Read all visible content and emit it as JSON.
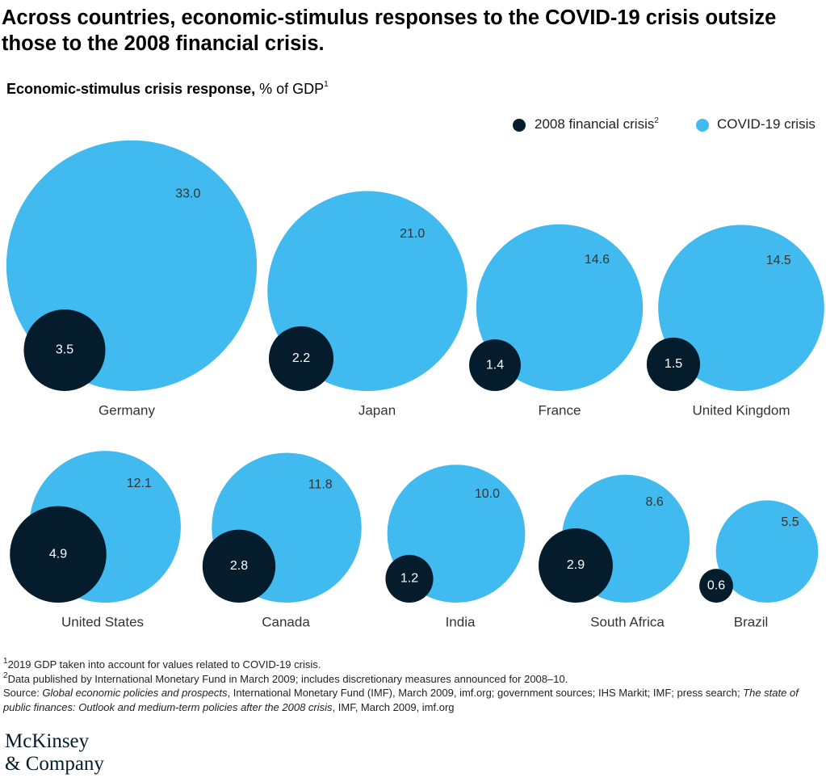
{
  "chart_data": {
    "type": "bubble",
    "title": "Across countries, economic-stimulus responses to the COVID-19 crisis outsize those to the 2008 financial crisis.",
    "subtitle": "Economic-stimulus crisis response,",
    "subtitle_unit": "% of GDP",
    "subtitle_note": "1",
    "categories": [
      "Germany",
      "Japan",
      "France",
      "United Kingdom",
      "United States",
      "Canada",
      "India",
      "South Africa",
      "Brazil"
    ],
    "series": [
      {
        "name": "2008 financial crisis",
        "name_note": "2",
        "color": "#051c2c",
        "values": [
          3.5,
          2.2,
          1.4,
          1.5,
          4.9,
          2.8,
          1.2,
          2.9,
          0.6
        ]
      },
      {
        "name": "COVID-19 crisis",
        "color": "#41bbef",
        "values": [
          33,
          21,
          14.6,
          14.5,
          12.1,
          11.8,
          10,
          8.6,
          5.5
        ],
        "value_labels": [
          "33.0",
          "21.0",
          "14.6",
          "14.5",
          "12.1",
          "11.8",
          "10.0",
          "8.6",
          "5.5"
        ]
      }
    ],
    "footnotes": [
      {
        "marker": "1",
        "text": "2019 GDP taken into account for values related to COVID-19 crisis."
      },
      {
        "marker": "2",
        "text": "Data published by International Monetary Fund in March 2009; includes discretionary measures announced for 2008–10."
      }
    ],
    "source": [
      {
        "text": "Source: ",
        "italic": false
      },
      {
        "text": "Global economic policies and prospects",
        "italic": true
      },
      {
        "text": ", International Monetary Fund (IMF), March 2009, imf.org; government sources; IHS Markit; IMF; press search; ",
        "italic": false
      },
      {
        "text": "The state of public finances: Outlook and medium-term policies after the 2008 crisis",
        "italic": true
      },
      {
        "text": ", IMF, March 2009, imf.org",
        "italic": false
      }
    ],
    "logo": [
      "McKinsey",
      "& Company"
    ]
  }
}
